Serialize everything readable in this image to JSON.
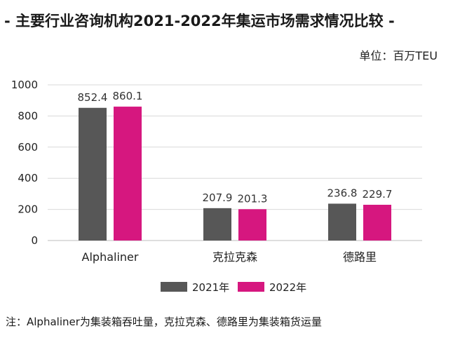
{
  "title": "- 主要行业咨询机构2021-2022年集运市场需求情况比较 -",
  "unit_label": "单位：百万TEU",
  "footnote": "注：Alphaliner为集装箱吞吐量，克拉克森、德路里为集装箱货运量",
  "colors": {
    "s2021": "#575757",
    "s2022": "#d6177f",
    "grid": "#d9d9d9",
    "axis": "#bdbdbd"
  },
  "chart_data": {
    "type": "bar",
    "categories": [
      "Alphaliner",
      "克拉克森",
      "德路里"
    ],
    "series": [
      {
        "name": "2021年",
        "values": [
          852.4,
          207.9,
          236.8
        ],
        "labels": [
          "852.4",
          "207.9",
          "236.8"
        ]
      },
      {
        "name": "2022年",
        "values": [
          860.1,
          201.3,
          229.7
        ],
        "labels": [
          "860.1",
          "201.3",
          "229.7"
        ]
      }
    ],
    "ylim": [
      0,
      1000
    ],
    "yticks": [
      0,
      200,
      400,
      600,
      800,
      1000
    ],
    "grid": true,
    "legend": "bottom-center"
  }
}
